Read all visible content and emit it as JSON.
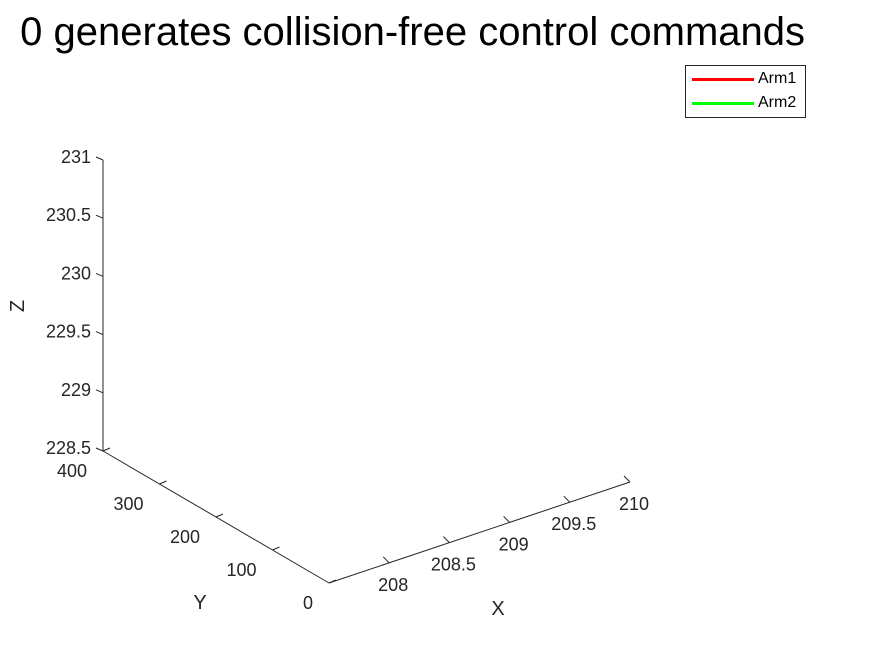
{
  "chart_data": {
    "type": "line",
    "title": "0 generates collision-free control commands",
    "xlabel": "X",
    "ylabel": "Y",
    "zlabel": "Z",
    "xlim": [
      207.5,
      210
    ],
    "ylim": [
      0,
      400
    ],
    "zlim": [
      228.5,
      231
    ],
    "x_ticks": [
      "208",
      "208.5",
      "209",
      "209.5",
      "210"
    ],
    "y_ticks": [
      "0",
      "100",
      "200",
      "300",
      "400"
    ],
    "z_ticks": [
      "228.5",
      "229",
      "229.5",
      "230",
      "230.5",
      "231"
    ],
    "grid": false,
    "legend_location": "top-right",
    "series": [
      {
        "name": "Arm1",
        "color": "#ff0000",
        "values": []
      },
      {
        "name": "Arm2",
        "color": "#00ff00",
        "values": []
      }
    ]
  }
}
